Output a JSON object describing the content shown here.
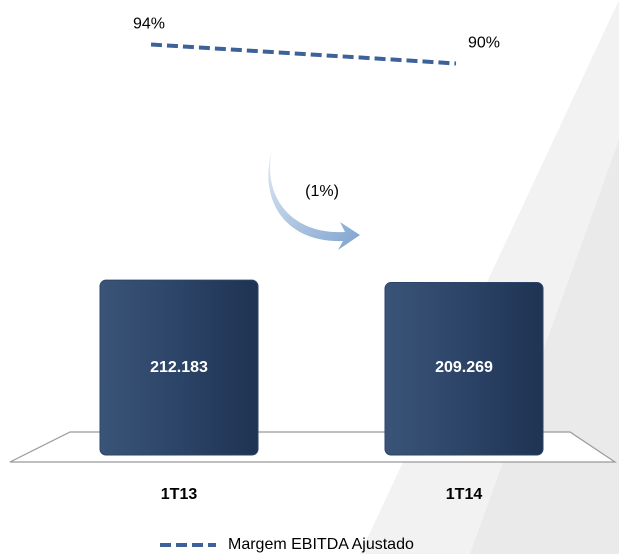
{
  "chart_data": {
    "type": "bar_line",
    "categories": [
      "1T13",
      "1T14"
    ],
    "series": [
      {
        "values": [
          212183,
          209269
        ],
        "value_labels": [
          "212.183",
          "209.269"
        ],
        "color": "#2c4468"
      },
      {
        "name": "Margem EBITDA Ajustado",
        "values": [
          94,
          90
        ],
        "value_labels": [
          "94%",
          "90%"
        ],
        "color": "#3d6299",
        "axis": "y2"
      }
    ],
    "ylim": [
      0,
      250000
    ],
    "y2lim": [
      0,
      100
    ],
    "annotations": [
      "(1%)"
    ]
  }
}
